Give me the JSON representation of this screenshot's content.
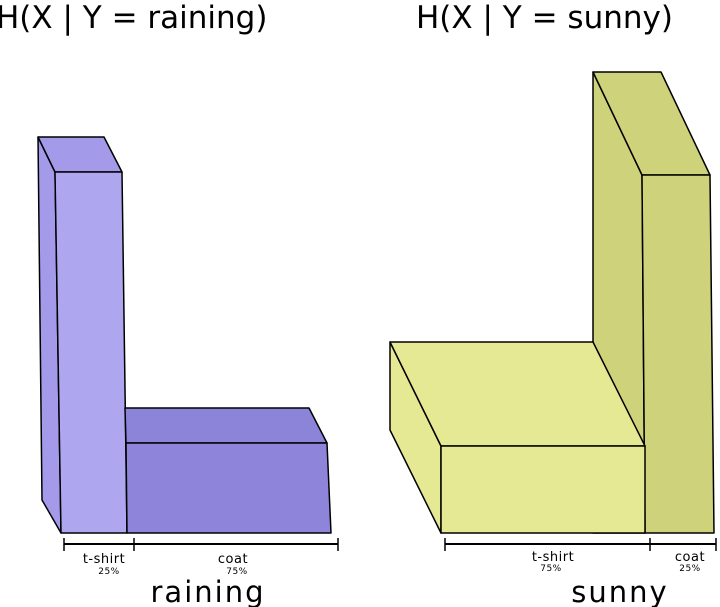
{
  "panels": {
    "raining": {
      "heading": "H(X | Y = raining)",
      "condition": "raining",
      "bars": [
        {
          "label": "t-shirt",
          "percent": "25%"
        },
        {
          "label": "coat",
          "percent": "75%"
        }
      ],
      "colors": {
        "front_light": "#aea7ef",
        "front_dark": "#8e85da",
        "top_dark": "#8c84d8"
      }
    },
    "sunny": {
      "heading": "H(X | Y = sunny)",
      "condition": "sunny",
      "bars": [
        {
          "label": "t-shirt",
          "percent": "75%"
        },
        {
          "label": "coat",
          "percent": "25%"
        }
      ],
      "colors": {
        "face_light": "#e6e994",
        "face_dark": "#cdd27b"
      }
    }
  }
}
